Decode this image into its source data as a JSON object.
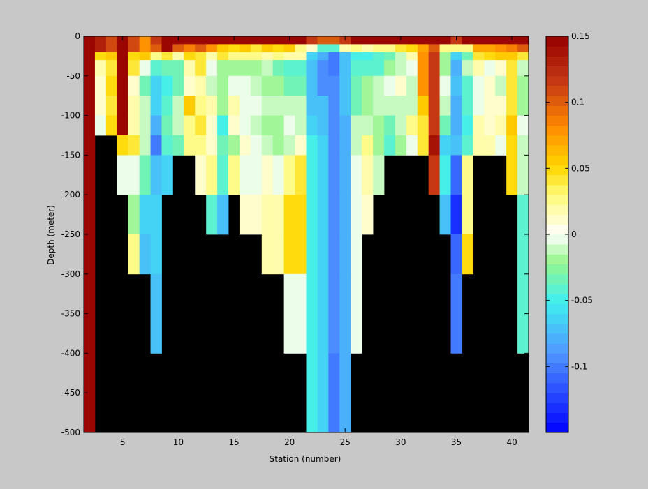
{
  "chart_data": {
    "type": "heatmap",
    "title": "",
    "xlabel": "Station (number)",
    "ylabel": "Depth (meter)",
    "xlim": [
      1.5,
      41.5
    ],
    "ylim": [
      -500,
      0
    ],
    "xticks": [
      5,
      10,
      15,
      20,
      25,
      30,
      35,
      40
    ],
    "yticks": [
      0,
      -50,
      -100,
      -150,
      -200,
      -250,
      -300,
      -350,
      -400,
      -450,
      -500
    ],
    "colorbar": {
      "range": [
        -0.15,
        0.15
      ],
      "ticks": [
        0.15,
        0.1,
        0.05,
        0,
        -0.05,
        -0.1
      ],
      "tick_labels": [
        "0.15",
        "0.1",
        "0.05",
        "0",
        "-0.05",
        "-0.1"
      ],
      "colormap": "jet-white",
      "levels": 40
    },
    "missing_color": "#000000",
    "depth_bins": [
      -10,
      -20,
      -30,
      -50,
      -75,
      -100,
      -125,
      -150,
      -200,
      -250,
      -300,
      -400,
      -500
    ],
    "stations": [
      2,
      3,
      4,
      5,
      6,
      7,
      8,
      9,
      10,
      11,
      12,
      13,
      14,
      15,
      16,
      17,
      18,
      19,
      20,
      21,
      22,
      23,
      24,
      25,
      26,
      27,
      28,
      29,
      30,
      31,
      32,
      33,
      34,
      35,
      36,
      37,
      38,
      39,
      40,
      41
    ],
    "values": [
      [
        0.15,
        0.15,
        0.15,
        0.15,
        0.15,
        0.15,
        0.15,
        0.15,
        0.15,
        0.15,
        0.15,
        0.15,
        0.15
      ],
      [
        0.13,
        0.13,
        0.05,
        0.02,
        0.01,
        0.01,
        0.0,
        null,
        null,
        null,
        null,
        null,
        null
      ],
      [
        0.11,
        0.11,
        0.06,
        0.04,
        0.05,
        0.04,
        0.05,
        null,
        null,
        null,
        null,
        null,
        null
      ],
      [
        0.15,
        0.15,
        0.15,
        0.15,
        0.15,
        0.15,
        0.15,
        0.05,
        0.0,
        null,
        null,
        null,
        null
      ],
      [
        0.11,
        0.11,
        0.05,
        0.04,
        0.01,
        0.02,
        0.02,
        0.04,
        0.0,
        -0.02,
        0.03,
        null,
        null
      ],
      [
        0.08,
        0.08,
        0.06,
        0.0,
        -0.03,
        -0.01,
        -0.01,
        -0.01,
        -0.03,
        -0.06,
        -0.07,
        null,
        null
      ],
      [
        0.12,
        0.1,
        0.03,
        -0.04,
        -0.06,
        -0.06,
        -0.08,
        -0.1,
        -0.07,
        -0.06,
        -0.06,
        -0.07,
        null
      ],
      [
        0.15,
        0.15,
        0.04,
        -0.03,
        -0.05,
        -0.04,
        -0.03,
        -0.04,
        -0.06,
        null,
        null,
        null,
        null
      ],
      [
        0.15,
        0.1,
        0.02,
        -0.03,
        -0.03,
        -0.01,
        -0.01,
        -0.03,
        null,
        null,
        null,
        null,
        null
      ],
      [
        0.15,
        0.09,
        0.05,
        0.02,
        0.01,
        0.06,
        0.03,
        0.03,
        null,
        null,
        null,
        null,
        null
      ],
      [
        0.15,
        0.1,
        0.04,
        0.04,
        0.02,
        0.03,
        0.04,
        0.03,
        0.01,
        null,
        null,
        null,
        null
      ],
      [
        0.15,
        0.08,
        0.02,
        0.0,
        -0.01,
        0.02,
        0.01,
        0.01,
        0.03,
        -0.04,
        null,
        null,
        null
      ],
      [
        0.15,
        0.06,
        0.04,
        -0.02,
        -0.02,
        -0.02,
        -0.05,
        -0.03,
        -0.04,
        -0.07,
        null,
        null,
        null
      ],
      [
        0.15,
        0.05,
        0.03,
        -0.02,
        0.0,
        0.02,
        0.01,
        -0.02,
        0.03,
        null,
        null,
        null,
        null
      ],
      [
        0.15,
        0.06,
        0.03,
        -0.02,
        0.0,
        0.0,
        0.0,
        0.01,
        0.0,
        0.01,
        null,
        null,
        null
      ],
      [
        0.15,
        0.04,
        0.03,
        -0.02,
        -0.01,
        0.0,
        -0.01,
        0.0,
        0.0,
        0.01,
        null,
        null,
        null
      ],
      [
        0.15,
        0.06,
        0.02,
        -0.01,
        -0.02,
        -0.01,
        -0.02,
        -0.01,
        0.01,
        0.02,
        0.02,
        null,
        null
      ],
      [
        0.15,
        0.05,
        0.03,
        -0.03,
        -0.02,
        -0.01,
        -0.02,
        -0.02,
        0.0,
        0.02,
        0.02,
        null,
        null
      ],
      [
        0.15,
        0.06,
        0.02,
        -0.04,
        -0.03,
        -0.01,
        0.0,
        -0.01,
        0.03,
        0.05,
        0.05,
        0.0,
        null
      ],
      [
        0.15,
        0.03,
        0.02,
        -0.04,
        -0.03,
        -0.01,
        -0.01,
        0.01,
        0.04,
        0.05,
        0.05,
        0.0,
        null
      ],
      [
        0.12,
        0.01,
        -0.06,
        -0.07,
        -0.07,
        -0.07,
        -0.06,
        -0.05,
        -0.05,
        -0.05,
        -0.05,
        -0.05,
        -0.05
      ],
      [
        0.1,
        -0.04,
        -0.08,
        -0.09,
        -0.09,
        -0.07,
        -0.07,
        -0.06,
        -0.06,
        -0.06,
        -0.06,
        -0.06,
        -0.06
      ],
      [
        0.1,
        -0.04,
        -0.1,
        -0.1,
        -0.09,
        -0.09,
        -0.09,
        -0.09,
        -0.09,
        -0.09,
        -0.09,
        -0.09,
        -0.1
      ],
      [
        0.12,
        0.02,
        -0.07,
        -0.07,
        -0.07,
        -0.07,
        -0.08,
        -0.08,
        -0.08,
        -0.08,
        -0.08,
        -0.08,
        -0.08
      ],
      [
        0.15,
        0.03,
        -0.05,
        -0.04,
        -0.03,
        -0.03,
        -0.01,
        -0.01,
        0.0,
        0.0,
        0.0,
        0.0,
        null
      ],
      [
        0.15,
        0.02,
        -0.05,
        -0.04,
        -0.02,
        -0.02,
        -0.01,
        0.03,
        0.02,
        0.01,
        null,
        null,
        null
      ],
      [
        0.15,
        0.03,
        -0.04,
        -0.04,
        -0.01,
        -0.01,
        -0.02,
        -0.02,
        -0.01,
        null,
        null,
        null,
        null
      ],
      [
        0.15,
        0.03,
        -0.03,
        -0.02,
        0.0,
        -0.01,
        -0.03,
        -0.04,
        null,
        null,
        null,
        null,
        null
      ],
      [
        0.15,
        0.04,
        -0.01,
        -0.01,
        0.01,
        -0.01,
        -0.01,
        -0.02,
        null,
        null,
        null,
        null,
        null
      ],
      [
        0.15,
        0.05,
        0.02,
        0.0,
        -0.01,
        -0.01,
        0.03,
        0.0,
        null,
        null,
        null,
        null,
        null
      ],
      [
        0.15,
        0.07,
        0.08,
        0.08,
        0.08,
        0.06,
        0.04,
        0.04,
        null,
        null,
        null,
        null,
        null
      ],
      [
        0.15,
        0.1,
        0.12,
        0.12,
        0.12,
        0.12,
        0.12,
        0.14,
        0.12,
        null,
        null,
        null,
        null
      ],
      [
        0.15,
        0.03,
        -0.02,
        -0.02,
        0.0,
        -0.01,
        -0.03,
        -0.06,
        -0.05,
        -0.07,
        null,
        null,
        null
      ],
      [
        0.12,
        0.03,
        -0.06,
        -0.08,
        -0.07,
        -0.08,
        -0.08,
        -0.07,
        -0.11,
        -0.13,
        -0.11,
        -0.1,
        null
      ],
      [
        0.15,
        0.03,
        -0.03,
        -0.01,
        -0.04,
        -0.04,
        -0.05,
        -0.04,
        0.03,
        0.03,
        0.05,
        null,
        null
      ],
      [
        0.15,
        0.07,
        0.04,
        0.02,
        0.0,
        0.0,
        0.02,
        0.02,
        null,
        null,
        null,
        null,
        null
      ],
      [
        0.15,
        0.07,
        0.05,
        0.0,
        0.01,
        0.01,
        0.01,
        0.02,
        null,
        null,
        null,
        null,
        null
      ],
      [
        0.15,
        0.08,
        0.06,
        0.01,
        -0.01,
        0.01,
        0.02,
        0.0,
        null,
        null,
        null,
        null,
        null
      ],
      [
        0.15,
        0.09,
        0.06,
        0.04,
        0.04,
        0.04,
        0.06,
        0.05,
        0.05,
        null,
        null,
        null,
        null
      ],
      [
        0.15,
        0.1,
        0.04,
        -0.01,
        -0.02,
        -0.02,
        0.0,
        -0.01,
        -0.01,
        -0.04,
        -0.04,
        -0.04,
        null
      ]
    ]
  }
}
